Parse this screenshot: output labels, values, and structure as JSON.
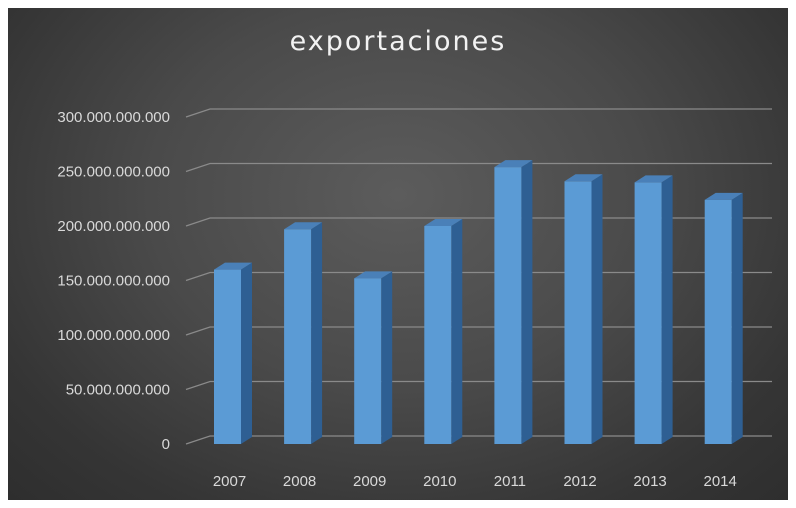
{
  "chart_data": {
    "type": "bar",
    "title": "exportaciones",
    "xlabel": "",
    "ylabel": "",
    "categories": [
      "2007",
      "2008",
      "2009",
      "2010",
      "2011",
      "2012",
      "2013",
      "2014"
    ],
    "values": [
      160000000000,
      197000000000,
      152000000000,
      200000000000,
      254000000000,
      241000000000,
      240000000000,
      224000000000
    ],
    "ylim": [
      0,
      300000000000
    ],
    "yticks": [
      0,
      50000000000,
      100000000000,
      150000000000,
      200000000000,
      250000000000,
      300000000000
    ],
    "ytick_labels": [
      "0",
      "50.000.000.000",
      "100.000.000.000",
      "150.000.000.000",
      "200.000.000.000",
      "250.000.000.000",
      "300.000.000.000"
    ],
    "grid": true,
    "legend": "none",
    "style": "3d-column",
    "colors": {
      "bar_front": "#5b9bd5",
      "bar_side": "#2e5f93",
      "bar_top": "#4a80b8",
      "background": "#474747",
      "gridline": "#8a8a8a",
      "text": "#d9d9d9"
    }
  }
}
